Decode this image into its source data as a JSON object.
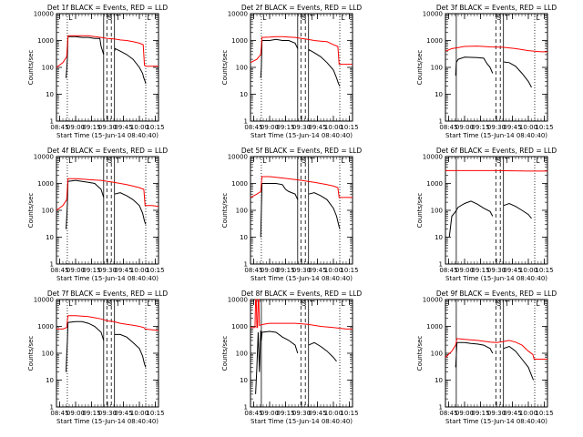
{
  "figure": {
    "shared": {
      "x_ticks": [
        "08:45",
        "09:00",
        "09:15",
        "09:30",
        "09:45",
        "10:00",
        "10:15"
      ],
      "y_ticks": [
        "1",
        "10",
        "100",
        "1000",
        "10000"
      ],
      "xlabel": "Start Time (15-Jun-14 08:40:40)",
      "ylabel": "Counts/sec",
      "colors": {
        "events": "#000000",
        "lld": "#ff0000"
      }
    }
  },
  "chart_data": [
    {
      "type": "line",
      "title": "Det 1f BLACK = Events, RED = LLD",
      "xlim": [
        8.7,
        10.3
      ],
      "ylim": [
        1,
        10000
      ],
      "yscale": "log",
      "markers": {
        "dotted": [
          8.87,
          10.1
        ],
        "solid": [
          9.44,
          9.61
        ],
        "dashed": [
          9.49,
          9.56
        ]
      },
      "region_labels": {
        "L": [
          8.89,
          10.12
        ],
        "S": 9.54,
        "T": 9.63
      },
      "series": [
        {
          "name": "Events",
          "x": [
            8.7,
            8.8,
            8.85,
            8.86,
            8.87,
            8.88,
            9.0,
            9.1,
            9.2,
            9.3,
            9.38,
            9.4,
            9.44,
            9.45,
            9.5,
            9.55,
            9.6,
            9.61,
            9.62,
            9.7,
            9.8,
            9.9,
            10.0,
            10.05,
            10.07,
            10.09,
            10.1
          ],
          "y": [
            null,
            null,
            40,
            80,
            200,
            1400,
            1400,
            1300,
            1300,
            1200,
            1200,
            600,
            300,
            null,
            null,
            null,
            null,
            400,
            500,
            400,
            300,
            200,
            100,
            60,
            40,
            30,
            25
          ]
        },
        {
          "name": "LLD",
          "x": [
            8.7,
            8.8,
            8.86,
            8.88,
            9.0,
            9.1,
            9.2,
            9.3,
            9.4,
            9.5,
            9.6,
            9.7,
            9.8,
            9.9,
            10.0,
            10.06,
            10.08,
            10.1,
            10.2,
            10.3
          ],
          "y": [
            100,
            150,
            250,
            1500,
            1500,
            1500,
            1500,
            1400,
            1300,
            1200,
            1150,
            1050,
            1000,
            900,
            800,
            700,
            120,
            110,
            110,
            110
          ]
        }
      ]
    },
    {
      "type": "line",
      "title": "Det 2f BLACK = Events, RED = LLD",
      "xlim": [
        8.7,
        10.3
      ],
      "ylim": [
        1,
        10000
      ],
      "yscale": "log",
      "markers": {
        "dotted": [
          8.87,
          10.1
        ],
        "solid": [
          9.44,
          9.61
        ],
        "dashed": [
          9.49,
          9.56
        ]
      },
      "region_labels": {
        "L": [
          8.89,
          10.12
        ],
        "S": 9.54,
        "T": 9.63
      },
      "series": [
        {
          "name": "Events",
          "x": [
            8.7,
            8.8,
            8.86,
            8.87,
            8.88,
            9.0,
            9.1,
            9.2,
            9.3,
            9.4,
            9.44,
            9.45,
            9.6,
            9.61,
            9.62,
            9.7,
            9.8,
            9.9,
            10.0,
            10.05,
            10.08,
            10.1
          ],
          "y": [
            null,
            null,
            40,
            100,
            1000,
            1000,
            1100,
            1000,
            1000,
            800,
            500,
            null,
            null,
            400,
            450,
            350,
            250,
            150,
            80,
            40,
            25,
            20
          ]
        },
        {
          "name": "LLD",
          "x": [
            8.7,
            8.8,
            8.86,
            8.88,
            9.0,
            9.1,
            9.2,
            9.3,
            9.4,
            9.5,
            9.6,
            9.7,
            9.8,
            9.9,
            10.0,
            10.07,
            10.09,
            10.2,
            10.3
          ],
          "y": [
            150,
            200,
            300,
            1300,
            1350,
            1400,
            1400,
            1350,
            1300,
            1200,
            1100,
            1000,
            950,
            900,
            700,
            600,
            130,
            130,
            130
          ]
        }
      ]
    },
    {
      "type": "line",
      "title": "Det 3f BLACK = Events, RED = LLD",
      "xlim": [
        8.7,
        10.3
      ],
      "ylim": [
        1,
        10000
      ],
      "yscale": "log",
      "markers": {
        "dotted": [
          10.1
        ],
        "solid": [
          8.87,
          9.61
        ],
        "dashed": [
          9.49,
          9.56
        ]
      },
      "region_labels": {
        "L": [
          10.12
        ],
        "S": 9.54,
        "T": 9.63
      },
      "series": [
        {
          "name": "Events",
          "x": [
            8.7,
            8.8,
            8.86,
            8.87,
            8.9,
            9.0,
            9.2,
            9.3,
            9.35,
            9.4,
            9.44,
            9.45,
            9.6,
            9.61,
            9.7,
            9.8,
            9.9,
            10.0,
            10.05
          ],
          "y": [
            null,
            null,
            50,
            150,
            200,
            240,
            230,
            220,
            140,
            100,
            60,
            null,
            null,
            160,
            150,
            110,
            60,
            30,
            18
          ]
        },
        {
          "name": "LLD",
          "x": [
            8.7,
            8.8,
            8.9,
            9.0,
            9.2,
            9.4,
            9.6,
            9.8,
            10.0,
            10.2,
            10.3
          ],
          "y": [
            400,
            500,
            550,
            600,
            620,
            580,
            560,
            500,
            420,
            380,
            380
          ]
        }
      ]
    },
    {
      "type": "line",
      "title": "Det 4f BLACK = Events, RED = LLD",
      "xlim": [
        8.7,
        10.3
      ],
      "ylim": [
        1,
        10000
      ],
      "yscale": "log",
      "markers": {
        "dotted": [
          8.87,
          10.1
        ],
        "solid": [
          9.44,
          9.61
        ],
        "dashed": [
          9.49,
          9.56
        ]
      },
      "region_labels": {
        "L": [
          8.89,
          10.12
        ],
        "S": 9.54,
        "T": 9.63
      },
      "series": [
        {
          "name": "Events",
          "x": [
            8.7,
            8.8,
            8.85,
            8.86,
            8.87,
            8.88,
            9.0,
            9.1,
            9.2,
            9.3,
            9.4,
            9.44,
            9.45,
            9.6,
            9.61,
            9.7,
            9.8,
            9.9,
            10.0,
            10.05,
            10.08,
            10.1
          ],
          "y": [
            null,
            null,
            20,
            50,
            150,
            1200,
            1300,
            1200,
            1100,
            1000,
            600,
            300,
            null,
            null,
            400,
            450,
            350,
            250,
            150,
            80,
            40,
            30
          ]
        },
        {
          "name": "LLD",
          "x": [
            8.7,
            8.8,
            8.86,
            8.88,
            9.0,
            9.1,
            9.2,
            9.3,
            9.4,
            9.5,
            9.6,
            9.7,
            9.8,
            9.9,
            10.0,
            10.07,
            10.09,
            10.2,
            10.3
          ],
          "y": [
            100,
            150,
            250,
            1500,
            1500,
            1450,
            1400,
            1350,
            1300,
            1200,
            1100,
            1000,
            900,
            800,
            700,
            600,
            150,
            150,
            140
          ]
        }
      ]
    },
    {
      "type": "line",
      "title": "Det 5f BLACK = Events, RED = LLD",
      "xlim": [
        8.7,
        10.3
      ],
      "ylim": [
        1,
        10000
      ],
      "yscale": "log",
      "markers": {
        "dotted": [
          8.87,
          10.1
        ],
        "solid": [
          9.44,
          9.61
        ],
        "dashed": [
          9.49,
          9.56
        ]
      },
      "region_labels": {
        "L": [
          8.89,
          10.12
        ],
        "S": 9.54,
        "T": 9.63
      },
      "series": [
        {
          "name": "Events",
          "x": [
            8.7,
            8.8,
            8.86,
            8.87,
            8.88,
            9.0,
            9.1,
            9.2,
            9.25,
            9.3,
            9.4,
            9.44,
            9.45,
            9.6,
            9.61,
            9.7,
            9.8,
            9.9,
            10.0,
            10.05,
            10.08,
            10.1
          ],
          "y": [
            null,
            null,
            10,
            100,
            1000,
            1000,
            1000,
            900,
            600,
            500,
            400,
            250,
            null,
            null,
            400,
            450,
            350,
            250,
            120,
            60,
            30,
            20
          ]
        },
        {
          "name": "LLD",
          "x": [
            8.7,
            8.8,
            8.86,
            8.88,
            9.0,
            9.2,
            9.4,
            9.5,
            9.6,
            9.7,
            9.8,
            9.9,
            10.0,
            10.07,
            10.09,
            10.2,
            10.3
          ],
          "y": [
            300,
            400,
            500,
            1800,
            1800,
            1600,
            1400,
            1300,
            1200,
            1100,
            1000,
            900,
            800,
            700,
            300,
            300,
            300
          ]
        }
      ]
    },
    {
      "type": "line",
      "title": "Det 6f BLACK = Events, RED = LLD",
      "xlim": [
        8.7,
        10.3
      ],
      "ylim": [
        1,
        10000
      ],
      "yscale": "log",
      "markers": {
        "dotted": [
          10.1
        ],
        "solid": [
          8.87,
          9.61
        ],
        "dashed": [
          9.49,
          9.56
        ]
      },
      "region_labels": {
        "L": [
          10.12
        ],
        "S": 9.54,
        "T": 9.63
      },
      "series": [
        {
          "name": "Events",
          "x": [
            8.7,
            8.75,
            8.76,
            8.8,
            8.86,
            8.87,
            8.9,
            9.0,
            9.1,
            9.2,
            9.3,
            9.4,
            9.44,
            9.45,
            9.6,
            9.61,
            9.7,
            9.8,
            9.9,
            10.0,
            10.05
          ],
          "y": [
            null,
            null,
            10,
            60,
            90,
            100,
            130,
            180,
            220,
            170,
            120,
            90,
            60,
            null,
            null,
            150,
            180,
            140,
            100,
            70,
            50
          ]
        },
        {
          "name": "LLD",
          "x": [
            8.7,
            9.0,
            9.5,
            10.0,
            10.3
          ],
          "y": [
            3000,
            3000,
            3000,
            2900,
            2900
          ]
        }
      ]
    },
    {
      "type": "line",
      "title": "Det 7f BLACK = Events, RED = LLD",
      "xlim": [
        8.7,
        10.3
      ],
      "ylim": [
        1,
        10000
      ],
      "yscale": "log",
      "markers": {
        "dotted": [
          8.87,
          10.1
        ],
        "solid": [
          9.44,
          9.61
        ],
        "dashed": [
          9.49,
          9.56
        ]
      },
      "region_labels": {
        "L": [
          8.89,
          10.12
        ],
        "S": 9.54,
        "T": 9.63
      },
      "series": [
        {
          "name": "Events",
          "x": [
            8.7,
            8.8,
            8.85,
            8.86,
            8.87,
            8.88,
            9.0,
            9.1,
            9.2,
            9.3,
            9.4,
            9.44,
            9.45,
            9.6,
            9.61,
            9.7,
            9.8,
            9.9,
            10.0,
            10.05,
            10.08,
            10.1
          ],
          "y": [
            null,
            null,
            20,
            80,
            250,
            1400,
            1500,
            1500,
            1300,
            1000,
            600,
            300,
            null,
            null,
            500,
            500,
            400,
            250,
            150,
            80,
            40,
            30
          ]
        },
        {
          "name": "LLD",
          "x": [
            8.7,
            8.8,
            8.86,
            8.88,
            9.0,
            9.1,
            9.2,
            9.3,
            9.4,
            9.5,
            9.6,
            9.7,
            9.8,
            9.9,
            10.0,
            10.07,
            10.09,
            10.2,
            10.3
          ],
          "y": [
            800,
            800,
            900,
            2500,
            2500,
            2400,
            2300,
            2100,
            1900,
            1600,
            1500,
            1300,
            1200,
            1100,
            1000,
            900,
            800,
            750,
            700
          ]
        }
      ]
    },
    {
      "type": "line",
      "title": "Det 8f BLACK = Events, RED = LLD",
      "xlim": [
        8.7,
        10.3
      ],
      "ylim": [
        1,
        10000
      ],
      "yscale": "log",
      "markers": {
        "dotted": [
          10.1
        ],
        "solid": [
          8.87,
          9.61
        ],
        "dashed": [
          9.49,
          9.56
        ]
      },
      "region_labels": {
        "L": [
          10.12
        ],
        "S": 9.54,
        "T": 9.63
      },
      "series": [
        {
          "name": "Events",
          "x": [
            8.7,
            8.77,
            8.78,
            8.8,
            8.82,
            8.84,
            8.86,
            8.87,
            8.88,
            9.0,
            9.1,
            9.2,
            9.3,
            9.4,
            9.44,
            9.45,
            9.6,
            9.61,
            9.7,
            9.8,
            9.9,
            10.0,
            10.05
          ],
          "y": [
            null,
            null,
            3,
            30,
            600,
            20,
            700,
            300,
            600,
            650,
            600,
            400,
            300,
            200,
            100,
            null,
            null,
            200,
            250,
            180,
            120,
            70,
            50
          ]
        },
        {
          "name": "LLD",
          "x": [
            8.7,
            8.77,
            8.78,
            8.79,
            8.8,
            8.81,
            8.82,
            8.83,
            8.84,
            8.9,
            9.0,
            9.2,
            9.4,
            9.6,
            9.8,
            10.0,
            10.2,
            10.3
          ],
          "y": [
            900,
            900,
            10000,
            10000,
            900,
            900,
            10000,
            10000,
            1100,
            1200,
            1300,
            1300,
            1300,
            1200,
            1000,
            900,
            800,
            800
          ]
        }
      ]
    },
    {
      "type": "line",
      "title": "Det 9f BLACK = Events, RED = LLD",
      "xlim": [
        8.7,
        10.3
      ],
      "ylim": [
        1,
        10000
      ],
      "yscale": "log",
      "markers": {
        "dotted": [
          10.1
        ],
        "solid": [
          8.87,
          9.61
        ],
        "dashed": [
          9.49,
          9.56
        ]
      },
      "region_labels": {
        "L": [
          10.12
        ],
        "S": 9.54,
        "T": 9.63
      },
      "series": [
        {
          "name": "Events",
          "x": [
            8.7,
            8.8,
            8.86,
            8.87,
            8.88,
            9.0,
            9.1,
            9.2,
            9.3,
            9.4,
            9.44,
            9.45,
            9.6,
            9.61,
            9.7,
            9.8,
            9.9,
            10.0,
            10.05,
            10.08
          ],
          "y": [
            null,
            null,
            30,
            80,
            250,
            250,
            230,
            220,
            200,
            150,
            100,
            null,
            null,
            150,
            180,
            120,
            60,
            30,
            15,
            10
          ]
        },
        {
          "name": "LLD",
          "x": [
            8.7,
            8.8,
            8.86,
            8.88,
            9.0,
            9.2,
            9.4,
            9.5,
            9.6,
            9.7,
            9.8,
            9.9,
            10.0,
            10.07,
            10.09,
            10.2,
            10.3
          ],
          "y": [
            70,
            120,
            200,
            350,
            330,
            300,
            260,
            250,
            270,
            300,
            260,
            200,
            120,
            90,
            60,
            60,
            60
          ]
        }
      ]
    }
  ]
}
